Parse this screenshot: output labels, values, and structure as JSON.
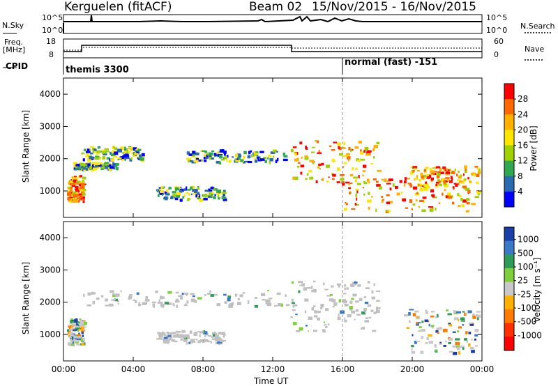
{
  "header": {
    "station": "Kerguelen (fitACF)",
    "beam": "Beam 02",
    "dates": "15/Nov/2015 - 16/Nov/2015"
  },
  "top_panels": {
    "nsky_label": "N.Sky",
    "nsky_ticks_left": [
      "10^5",
      "10^0"
    ],
    "nsky_ticks_right": [
      "10^5",
      "10^0"
    ],
    "nsearch_label": "N.Search",
    "freq_label_line1": "Freq.",
    "freq_label_line2": "[MHz]",
    "freq_ticks": [
      "18",
      "8"
    ],
    "nave_label": "Nave",
    "nave_ticks": [
      "60",
      "0"
    ],
    "cpid_label": "CPID",
    "cpid_mode1": "themis 3300",
    "cpid_mode2": "normal (fast) -151"
  },
  "axes": {
    "y_label": "Slant Range [km]",
    "y_ticks": [
      "4000",
      "3000",
      "2000",
      "1000"
    ],
    "x_label": "Time UT",
    "x_ticks": [
      "00:00",
      "04:00",
      "08:00",
      "12:00",
      "16:00",
      "20:00",
      "00:00"
    ]
  },
  "chart_data": [
    {
      "type": "heatmap",
      "title": "Power",
      "xlabel": "Time UT",
      "ylabel": "Slant Range [km]",
      "xlim_hours": [
        0,
        24
      ],
      "ylim_km": [
        180,
        4500
      ],
      "colorbar_label": "Power [dB]",
      "colorbar_ticks": [
        "28",
        "24",
        "20",
        "16",
        "12",
        "8",
        "4"
      ],
      "colorbar_colors": [
        "#ff0000",
        "#ff6a00",
        "#ffb000",
        "#ffe600",
        "#9fd000",
        "#2fa84f",
        "#2a6ab0",
        "#0000ff"
      ],
      "echo_regions": [
        {
          "t": [
            0.2,
            1.1
          ],
          "r": [
            700,
            1500
          ],
          "level": "high"
        },
        {
          "t": [
            1.0,
            4.5
          ],
          "r": [
            2000,
            2400
          ],
          "level": "mid"
        },
        {
          "t": [
            0.5,
            3.0
          ],
          "r": [
            1700,
            1900
          ],
          "level": "mid"
        },
        {
          "t": [
            5.3,
            9.2
          ],
          "r": [
            750,
            1150
          ],
          "level": "mid"
        },
        {
          "t": [
            7.0,
            12.8
          ],
          "r": [
            1900,
            2300
          ],
          "level": "mid"
        },
        {
          "t": [
            13.0,
            18.0
          ],
          "r": [
            1200,
            2600
          ],
          "level": "high"
        },
        {
          "t": [
            16.0,
            23.8
          ],
          "r": [
            400,
            1400
          ],
          "level": "high"
        },
        {
          "t": [
            19.5,
            23.8
          ],
          "r": [
            1200,
            1800
          ],
          "level": "high"
        }
      ]
    },
    {
      "type": "heatmap",
      "title": "Velocity",
      "xlabel": "Time UT",
      "ylabel": "Slant Range [km]",
      "xlim_hours": [
        0,
        24
      ],
      "ylim_km": [
        180,
        4500
      ],
      "colorbar_label": "Velocity [m s⁻¹]",
      "colorbar_ticks": [
        "1000",
        "500",
        "100",
        "25",
        "-25",
        "-100",
        "-500",
        "-1000"
      ],
      "colorbar_colors": [
        "#1a3fa8",
        "#3a78c8",
        "#2f9b58",
        "#7fcf3a",
        "#c8c8c8",
        "#ffb000",
        "#ff7a00",
        "#ff3000",
        "#ff0000"
      ],
      "echo_regions": [
        {
          "t": [
            0.2,
            1.1
          ],
          "r": [
            700,
            1500
          ],
          "level": "mixed"
        },
        {
          "t": [
            1.0,
            12.8
          ],
          "r": [
            1900,
            2400
          ],
          "level": "ground"
        },
        {
          "t": [
            5.3,
            9.2
          ],
          "r": [
            750,
            1150
          ],
          "level": "ground"
        },
        {
          "t": [
            13.0,
            18.0
          ],
          "r": [
            1100,
            2700
          ],
          "level": "ground"
        },
        {
          "t": [
            19.5,
            23.8
          ],
          "r": [
            400,
            1800
          ],
          "level": "mixed"
        }
      ]
    }
  ],
  "colors": {
    "axis": "#000000",
    "dashed_divider": "#999999",
    "ground_scatter": "#c0c0c0"
  }
}
